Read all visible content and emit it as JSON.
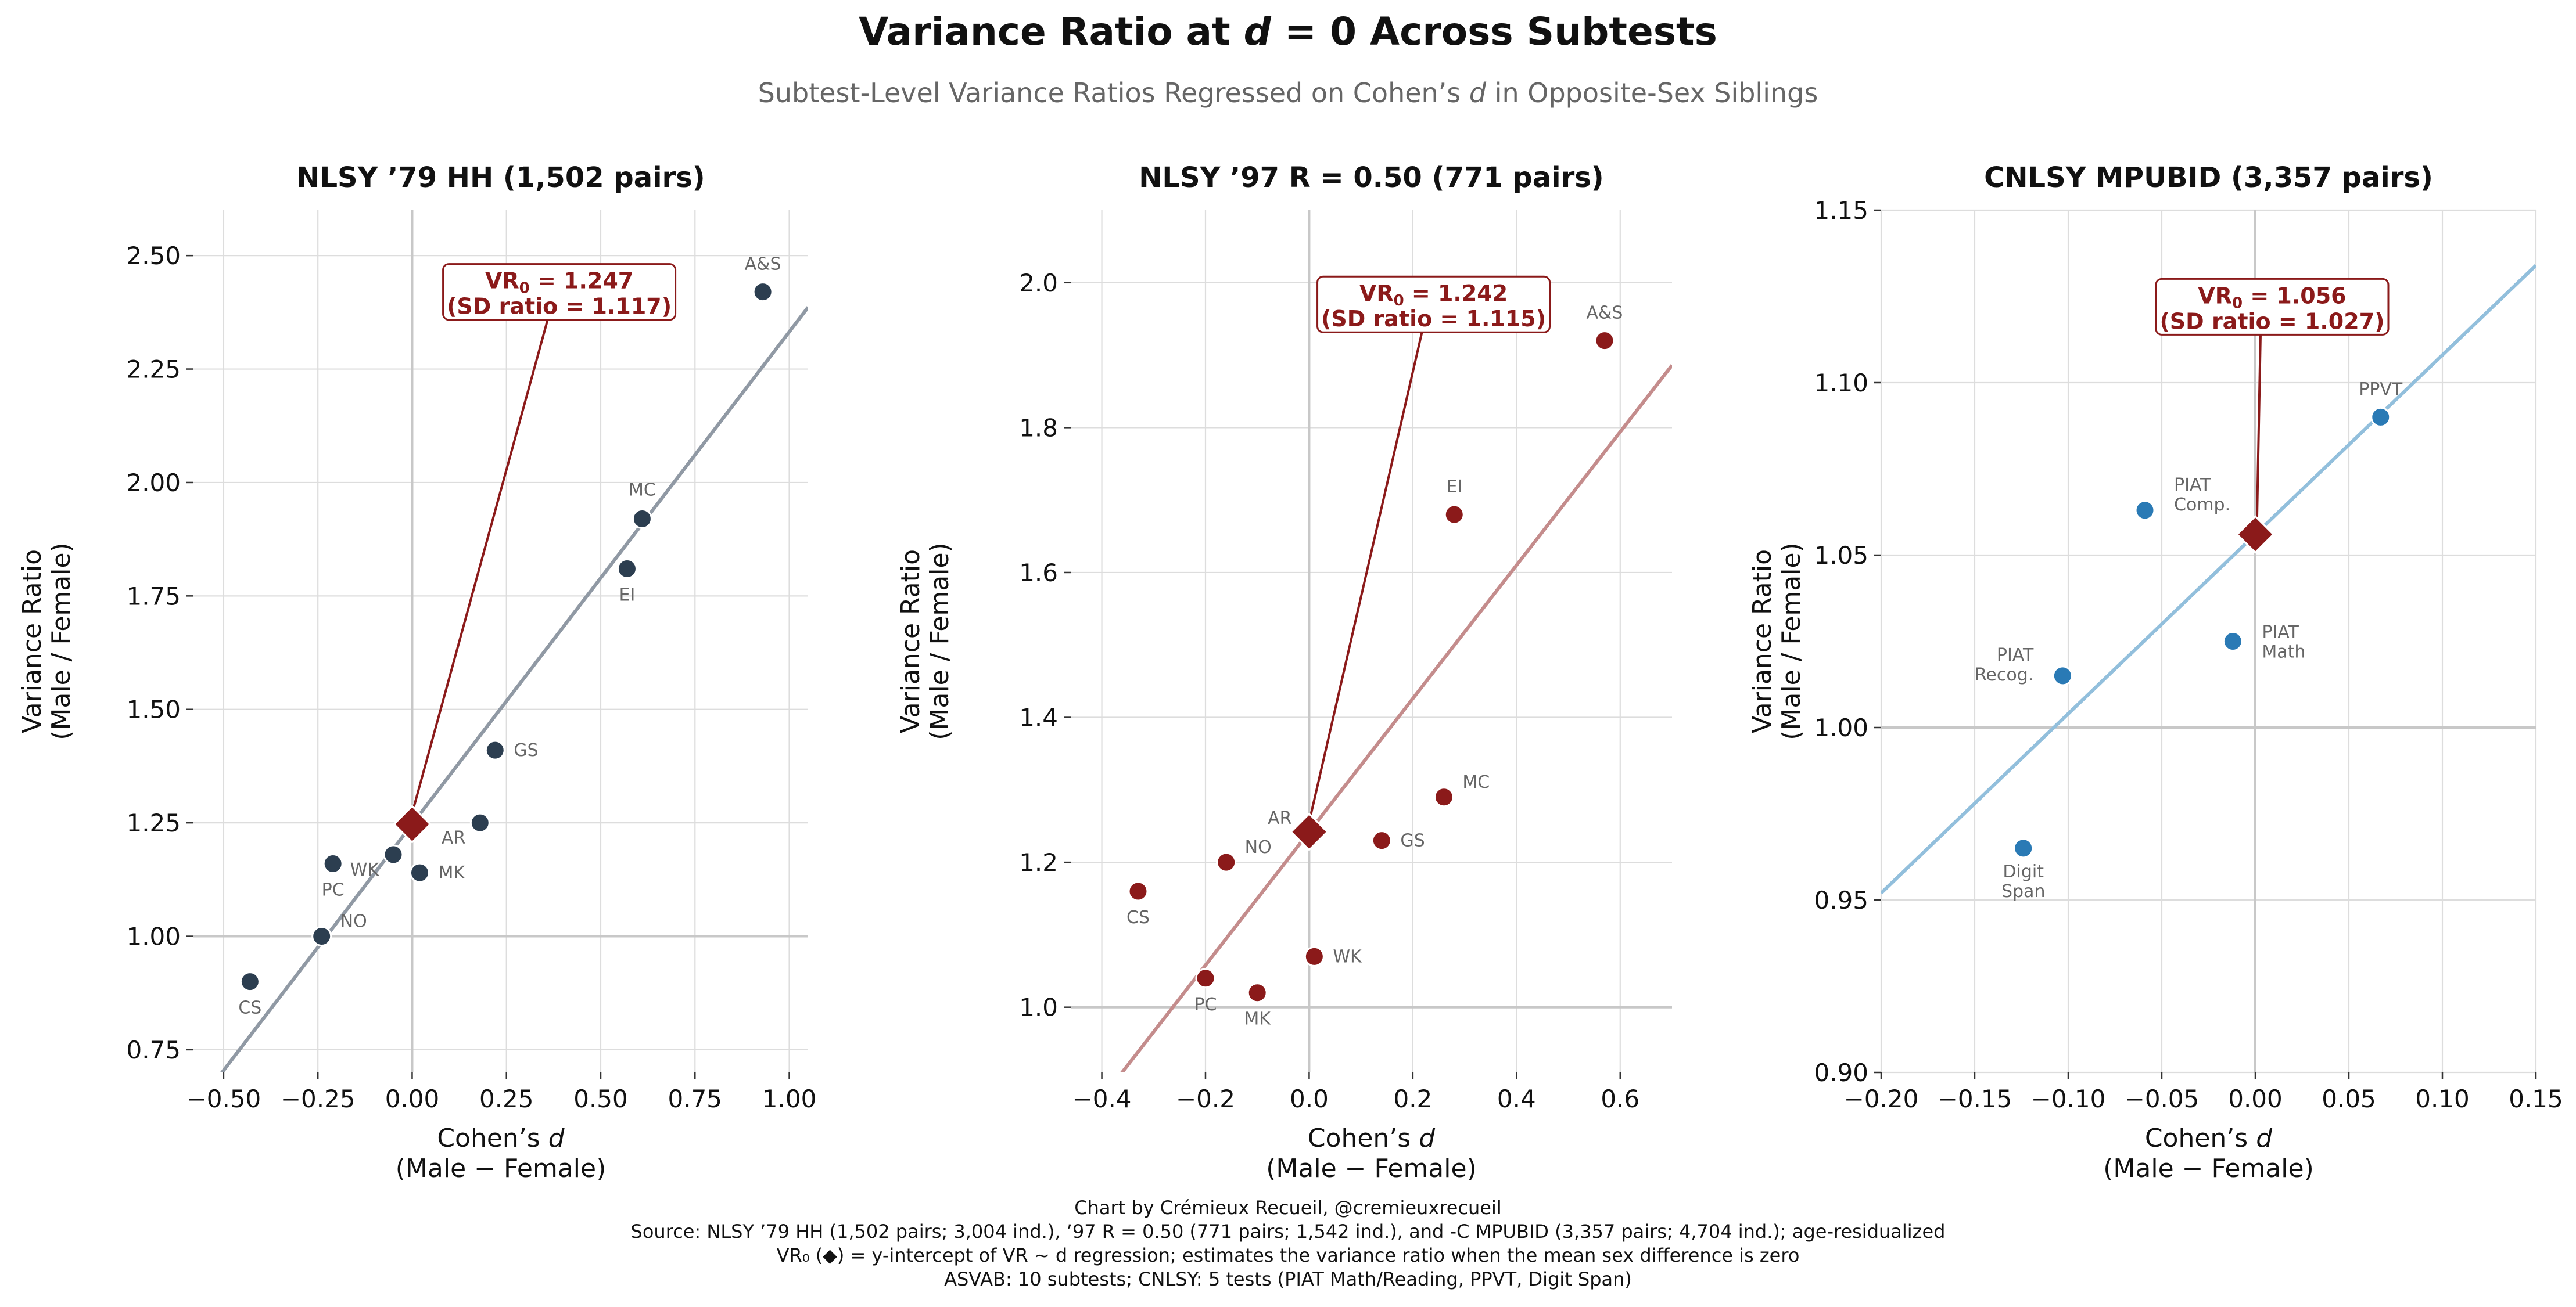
{
  "title": {
    "prefix": "Variance Ratio at ",
    "var": "d",
    "suffix": " = 0 Across Subtests"
  },
  "subtitle": {
    "prefix": "Subtest-Level Variance Ratios Regressed on Cohen’s ",
    "var": "d",
    "suffix": " in Opposite-Sex Siblings"
  },
  "footer": [
    "Chart by Crémieux Recueil, @cremieuxrecueil",
    "Source: NLSY ’79 HH (1,502 pairs; 3,004 ind.), ’97 R = 0.50 (771 pairs; 1,542 ind.), and -C MPUBID (3,357 pairs; 4,704 ind.); age-residualized",
    "VR₀ (◆) = y-intercept of VR ~ d regression; estimates the variance ratio when the mean sex difference is zero",
    "ASVAB: 10 subtests; CNLSY: 5 tests (PIAT Math/Reading, PPVT, Digit Span)"
  ],
  "axis_labels": {
    "x_line1": "Cohen’s ",
    "x_var": "d",
    "x_line2": "(Male − Female)",
    "y_line1": "Variance Ratio",
    "y_line2": "(Male / Female)"
  },
  "colors": {
    "intercept": "#8b1a1a",
    "grid": "#dddddd",
    "zero_line": "#c8c8c8"
  },
  "chart_data": [
    {
      "type": "scatter",
      "title": "NLSY ’79 HH (1,502 pairs)",
      "point_color": "#2c3e50",
      "line_color": "#9099a4",
      "xlim": [
        -0.58,
        1.05
      ],
      "ylim": [
        0.7,
        2.6
      ],
      "xticks": [
        -0.5,
        -0.25,
        0.0,
        0.25,
        0.5,
        0.75,
        1.0
      ],
      "xtick_labels": [
        "−0.50",
        "−0.25",
        "0.00",
        "0.25",
        "0.50",
        "0.75",
        "1.00"
      ],
      "yticks": [
        0.75,
        1.0,
        1.25,
        1.5,
        1.75,
        2.0,
        2.25,
        2.5
      ],
      "ytick_labels": [
        "0.75",
        "1.00",
        "1.25",
        "1.50",
        "1.75",
        "2.00",
        "2.25",
        "2.50"
      ],
      "regression": {
        "intercept": 1.247,
        "slope": 1.085
      },
      "intercept_label": {
        "line1_prefix": "VR",
        "line1_sub": "0",
        "line1_suffix": " = 1.247",
        "line2": "(SD ratio = 1.117)",
        "box_x": 0.39,
        "box_y": 2.42
      },
      "points": [
        {
          "label": "A&S",
          "x": 0.93,
          "y": 2.42,
          "pos": "above"
        },
        {
          "label": "MC",
          "x": 0.61,
          "y": 1.92,
          "pos": "above-left"
        },
        {
          "label": "EI",
          "x": 0.57,
          "y": 1.81,
          "pos": "below"
        },
        {
          "label": "GS",
          "x": 0.22,
          "y": 1.41,
          "pos": "right"
        },
        {
          "label": "AR",
          "x": 0.18,
          "y": 1.25,
          "pos": "below-left"
        },
        {
          "label": "MK",
          "x": 0.02,
          "y": 1.14,
          "pos": "right"
        },
        {
          "label": "WK",
          "x": -0.05,
          "y": 1.18,
          "pos": "below-left"
        },
        {
          "label": "PC",
          "x": -0.21,
          "y": 1.16,
          "pos": "below"
        },
        {
          "label": "NO",
          "x": -0.24,
          "y": 1.0,
          "pos": "right-up"
        },
        {
          "label": "CS",
          "x": -0.43,
          "y": 0.9,
          "pos": "below"
        }
      ]
    },
    {
      "type": "scatter",
      "title": "NLSY ’97 R = 0.50 (771 pairs)",
      "point_color": "#8b1a1a",
      "line_color": "#c48c8c",
      "xlim": [
        -0.46,
        0.7
      ],
      "ylim": [
        0.91,
        2.1
      ],
      "xticks": [
        -0.4,
        -0.2,
        0.0,
        0.2,
        0.4,
        0.6
      ],
      "xtick_labels": [
        "−0.4",
        "−0.2",
        "0.0",
        "0.2",
        "0.4",
        "0.6"
      ],
      "yticks": [
        1.0,
        1.2,
        1.4,
        1.6,
        1.8,
        2.0
      ],
      "ytick_labels": [
        "1.0",
        "1.2",
        "1.4",
        "1.6",
        "1.8",
        "2.0"
      ],
      "regression": {
        "intercept": 1.242,
        "slope": 0.92
      },
      "intercept_label": {
        "line1_prefix": "VR",
        "line1_sub": "0",
        "line1_suffix": " = 1.242",
        "line2": "(SD ratio = 1.115)",
        "box_x": 0.24,
        "box_y": 1.97
      },
      "points": [
        {
          "label": "A&S",
          "x": 0.57,
          "y": 1.92,
          "pos": "above"
        },
        {
          "label": "EI",
          "x": 0.28,
          "y": 1.68,
          "pos": "above"
        },
        {
          "label": "MC",
          "x": 0.26,
          "y": 1.29,
          "pos": "right-up"
        },
        {
          "label": "GS",
          "x": 0.14,
          "y": 1.23,
          "pos": "right"
        },
        {
          "label": "AR",
          "x": 0.0,
          "y": 1.24,
          "pos": "left-up"
        },
        {
          "label": "NO",
          "x": -0.16,
          "y": 1.2,
          "pos": "right-up"
        },
        {
          "label": "CS",
          "x": -0.33,
          "y": 1.16,
          "pos": "below"
        },
        {
          "label": "WK",
          "x": 0.01,
          "y": 1.07,
          "pos": "right"
        },
        {
          "label": "PC",
          "x": -0.2,
          "y": 1.04,
          "pos": "below"
        },
        {
          "label": "MK",
          "x": -0.1,
          "y": 1.02,
          "pos": "below"
        }
      ]
    },
    {
      "type": "scatter",
      "title": "CNLSY MPUBID (3,357 pairs)",
      "point_color": "#2a7ab5",
      "line_color": "#92bfdc",
      "xlim": [
        -0.2,
        0.15
      ],
      "ylim": [
        0.9,
        1.15
      ],
      "xticks": [
        -0.2,
        -0.15,
        -0.1,
        -0.05,
        0.0,
        0.05,
        0.1,
        0.15
      ],
      "xtick_labels": [
        "−0.20",
        "−0.15",
        "−0.10",
        "−0.05",
        "0.00",
        "0.05",
        "0.10",
        "0.15"
      ],
      "yticks": [
        0.9,
        0.95,
        1.0,
        1.05,
        1.1,
        1.15
      ],
      "ytick_labels": [
        "0.90",
        "0.95",
        "1.00",
        "1.05",
        "1.10",
        "1.15"
      ],
      "regression": {
        "intercept": 1.056,
        "slope": 0.52
      },
      "intercept_label": {
        "line1_prefix": "VR",
        "line1_sub": "0",
        "line1_suffix": " = 1.056",
        "line2": "(SD ratio = 1.027)",
        "box_x": 0.009,
        "box_y": 1.122
      },
      "points": [
        {
          "label": "PPVT",
          "x": 0.067,
          "y": 1.09,
          "pos": "above"
        },
        {
          "label": "PIAT\nComp.",
          "x": -0.059,
          "y": 1.063,
          "pos": "right-up2"
        },
        {
          "label": "PIAT\nMath",
          "x": -0.012,
          "y": 1.025,
          "pos": "right2"
        },
        {
          "label": "PIAT\nRecog.",
          "x": -0.103,
          "y": 1.015,
          "pos": "left2"
        },
        {
          "label": "Digit\nSpan",
          "x": -0.124,
          "y": 0.965,
          "pos": "below2"
        }
      ]
    }
  ]
}
